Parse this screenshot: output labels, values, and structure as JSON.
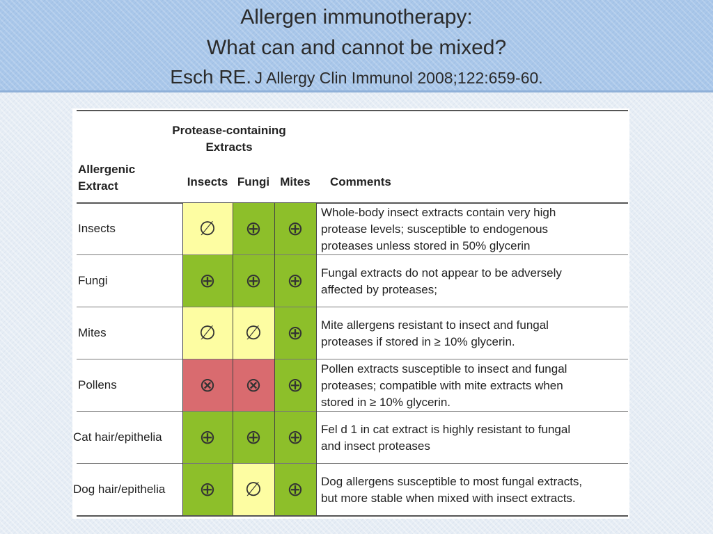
{
  "slide": {
    "title_line1": "Allergen immunotherapy:",
    "title_line2": "What can and cannot be mixed?",
    "citation_author": "Esch RE.",
    "citation_journal": "J Allergy Clin Immunol 2008;122:659-60."
  },
  "table": {
    "group_header_line1": "Protease-containing",
    "group_header_line2": "Extracts",
    "row_header_line1": "Allergenic",
    "row_header_line2": "Extract",
    "columns": [
      "Insects",
      "Fungi",
      "Mites"
    ],
    "comments_header": "Comments",
    "symbols": {
      "compatible": "⊕",
      "reduced": "∅",
      "incompatible": "⊗"
    },
    "colors": {
      "compatible": "#8dbf2a",
      "reduced": "#fdfda2",
      "incompatible": "#d96b6f"
    },
    "rows": [
      {
        "label": "Insects",
        "cells": [
          "reduced",
          "compatible",
          "compatible"
        ],
        "comment": [
          "Whole-body insect extracts contain very high",
          "protease levels; susceptible to endogenous",
          "proteases unless stored in 50% glycerin"
        ]
      },
      {
        "label": "Fungi",
        "cells": [
          "compatible",
          "compatible",
          "compatible"
        ],
        "comment": [
          "Fungal extracts do not appear to be adversely",
          "affected by proteases;"
        ]
      },
      {
        "label": "Mites",
        "cells": [
          "reduced",
          "reduced",
          "compatible"
        ],
        "comment": [
          "Mite allergens resistant to insect and fungal",
          "proteases if stored in ≥ 10% glycerin."
        ]
      },
      {
        "label": "Pollens",
        "cells": [
          "incompatible",
          "incompatible",
          "compatible"
        ],
        "comment": [
          "Pollen extracts susceptible to insect and fungal",
          "proteases; compatible with mite extracts when",
          "stored in ≥ 10% glycerin."
        ]
      },
      {
        "label": "Cat hair/epithelia",
        "cells": [
          "compatible",
          "compatible",
          "compatible"
        ],
        "comment": [
          "Fel d 1 in cat extract is highly resistant to fungal",
          "and insect proteases"
        ]
      },
      {
        "label": "Dog hair/epithelia",
        "cells": [
          "compatible",
          "reduced",
          "compatible"
        ],
        "comment": [
          "Dog allergens susceptible to most fungal extracts,",
          "but more stable when mixed with insect extracts."
        ]
      }
    ]
  }
}
